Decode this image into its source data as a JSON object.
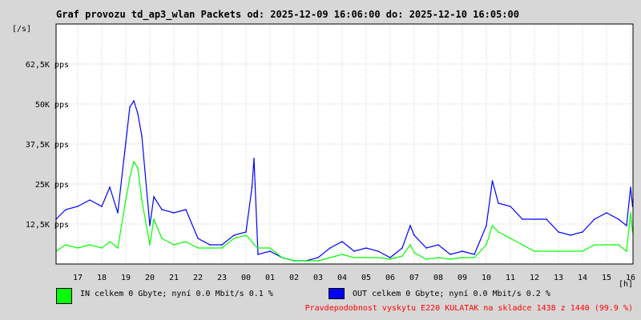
{
  "header": {
    "title": "Graf provozu td_ap3_wlan Packets od: 2025-12-09 16:06:00 do: 2025-12-10 16:05:00",
    "y_unit": "[/s]",
    "x_unit": "[h]"
  },
  "legend": {
    "in": {
      "text": "IN celkem 0 Gbyte; nyní   0.0 Mbit/s 0.1 %",
      "color": "#00ff00"
    },
    "out": {
      "text": "OUT celkem 0 Gbyte; nyní   0.0 Mbit/s 0.2 %",
      "color": "#0000ff"
    }
  },
  "footer": "Pravdepodobnost vyskytu E220 KULATAK na skladce 1438 z 1440 (99.9 %)",
  "chart_data": {
    "type": "line",
    "title": "Graf provozu td_ap3_wlan Packets od: 2025-12-09 16:06:00 do: 2025-12-10 16:05:00",
    "xlabel": "[h]",
    "ylabel": "[/s]",
    "ylim": [
      0,
      75000
    ],
    "xlim": [
      16.1,
      16.083
    ],
    "y_ticks": [
      {
        "value": 12500,
        "label": "12,5K pps"
      },
      {
        "value": 25000,
        "label": "25K pps"
      },
      {
        "value": 37500,
        "label": "37,5K pps"
      },
      {
        "value": 50000,
        "label": "50K pps"
      },
      {
        "value": 62500,
        "label": "62,5K pps"
      }
    ],
    "x_ticks": [
      "17",
      "18",
      "19",
      "20",
      "21",
      "22",
      "23",
      "00",
      "01",
      "02",
      "03",
      "04",
      "05",
      "06",
      "07",
      "08",
      "09",
      "10",
      "11",
      "12",
      "13",
      "14",
      "15",
      "16"
    ],
    "grid": true,
    "series": [
      {
        "name": "OUT",
        "color": "#0000ff",
        "x": [
          "16:06",
          "16:30",
          "17:00",
          "17:30",
          "18:00",
          "18:20",
          "18:40",
          "19:00",
          "19:10",
          "19:20",
          "19:30",
          "19:40",
          "20:00",
          "20:10",
          "20:30",
          "21:00",
          "21:30",
          "22:00",
          "22:30",
          "23:00",
          "23:30",
          "00:00",
          "00:15",
          "00:20",
          "00:30",
          "01:00",
          "01:30",
          "02:00",
          "02:30",
          "03:00",
          "03:30",
          "04:00",
          "04:30",
          "05:00",
          "05:30",
          "06:00",
          "06:30",
          "06:50",
          "07:00",
          "07:30",
          "08:00",
          "08:30",
          "09:00",
          "09:30",
          "10:00",
          "10:15",
          "10:30",
          "11:00",
          "11:30",
          "12:00",
          "12:30",
          "13:00",
          "13:30",
          "14:00",
          "14:30",
          "15:00",
          "15:30",
          "15:50",
          "16:00",
          "16:05"
        ],
        "values": [
          14000,
          17000,
          18000,
          20000,
          18000,
          24000,
          16000,
          38000,
          49000,
          51000,
          47000,
          40000,
          12000,
          21000,
          17000,
          16000,
          17000,
          8000,
          6000,
          6000,
          9000,
          10000,
          24000,
          33000,
          3000,
          4000,
          2000,
          1000,
          1000,
          2000,
          5000,
          7000,
          4000,
          5000,
          4000,
          2000,
          5000,
          12000,
          9000,
          5000,
          6000,
          3000,
          4000,
          3000,
          12000,
          26000,
          19000,
          18000,
          14000,
          14000,
          14000,
          10000,
          9000,
          10000,
          14000,
          16000,
          14000,
          12000,
          24000,
          18000
        ]
      },
      {
        "name": "IN",
        "color": "#00ff00",
        "x": [
          "16:06",
          "16:30",
          "17:00",
          "17:30",
          "18:00",
          "18:20",
          "18:40",
          "19:00",
          "19:10",
          "19:20",
          "19:30",
          "19:40",
          "20:00",
          "20:10",
          "20:30",
          "21:00",
          "21:30",
          "22:00",
          "22:30",
          "23:00",
          "23:30",
          "00:00",
          "00:15",
          "00:20",
          "00:30",
          "01:00",
          "01:30",
          "02:00",
          "02:30",
          "03:00",
          "03:30",
          "04:00",
          "04:30",
          "05:00",
          "05:30",
          "06:00",
          "06:30",
          "06:50",
          "07:00",
          "07:30",
          "08:00",
          "08:30",
          "09:00",
          "09:30",
          "10:00",
          "10:15",
          "10:30",
          "11:00",
          "11:30",
          "12:00",
          "12:30",
          "13:00",
          "13:30",
          "14:00",
          "14:30",
          "15:00",
          "15:30",
          "15:50",
          "16:00",
          "16:05"
        ],
        "values": [
          4000,
          6000,
          5000,
          6000,
          5000,
          7000,
          5000,
          20000,
          27000,
          32000,
          30000,
          20000,
          6000,
          14000,
          8000,
          6000,
          7000,
          5000,
          5000,
          5000,
          8000,
          9000,
          7000,
          6000,
          5000,
          5000,
          2000,
          1000,
          1000,
          1000,
          2000,
          3000,
          2000,
          2000,
          2000,
          1500,
          2500,
          6000,
          3500,
          1500,
          2000,
          1500,
          2000,
          2000,
          6000,
          12000,
          10000,
          8000,
          6000,
          4000,
          4000,
          4000,
          4000,
          4000,
          6000,
          6000,
          6000,
          4000,
          16000,
          10000
        ]
      }
    ]
  }
}
